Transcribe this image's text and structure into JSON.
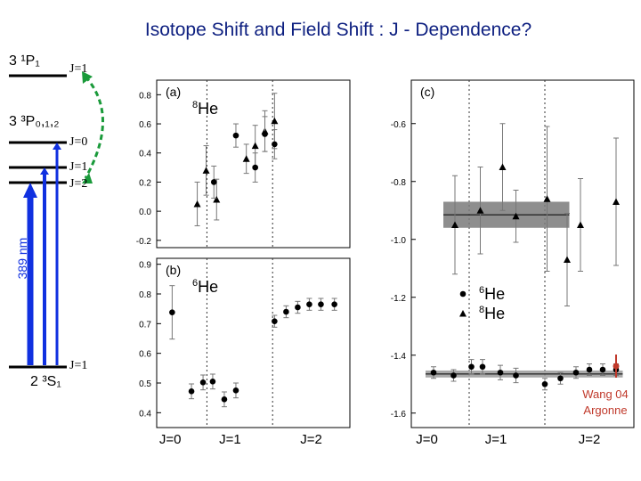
{
  "slide": {
    "title": "Isotope Shift and Field Shift : J - Dependence?",
    "credit_line1": "Wang 04",
    "credit_line2": "Argonne",
    "accent_color": "#0d1f80"
  },
  "energy_diagram": {
    "upper_singlet": "3 ¹P₁",
    "upper_singlet_J": "J=1",
    "triplet": "3 ³P₀,₁,₂",
    "triplet_J": [
      "J=0",
      "J=1",
      "J=2"
    ],
    "ground": "2 ³S₁",
    "ground_J": "J=1",
    "wavelength_label": "389 nm",
    "arrow_color": "#1030e0",
    "curved_arrow_color": "#1a9a3a"
  },
  "chart_data": [
    {
      "id": "a",
      "type": "scatter",
      "panel_label": "(a)",
      "isotope": "8He",
      "categories": [
        "J=0",
        "J=1",
        "J=2"
      ],
      "ylim": [
        -0.25,
        0.9
      ],
      "yticks": [
        -0.2,
        0.0,
        0.2,
        0.4,
        0.6,
        0.8
      ],
      "series": [
        {
          "marker": "triangle",
          "points": [
            {
              "x": 1.05,
              "y": 0.05,
              "err": 0.15
            },
            {
              "x": 1.28,
              "y": 0.28,
              "err": 0.17
            },
            {
              "x": 1.55,
              "y": 0.08,
              "err": 0.14
            },
            {
              "x": 2.32,
              "y": 0.36,
              "err": 0.1
            },
            {
              "x": 2.55,
              "y": 0.45,
              "err": 0.14
            },
            {
              "x": 2.8,
              "y": 0.55,
              "err": 0.14
            },
            {
              "x": 3.05,
              "y": 0.62,
              "err": 0.19
            }
          ]
        },
        {
          "marker": "dot",
          "points": [
            {
              "x": 1.48,
              "y": 0.2,
              "err": 0.11
            },
            {
              "x": 2.05,
              "y": 0.52,
              "err": 0.08
            },
            {
              "x": 2.55,
              "y": 0.3,
              "err": 0.1
            },
            {
              "x": 2.8,
              "y": 0.53,
              "err": 0.12
            },
            {
              "x": 3.05,
              "y": 0.46,
              "err": 0.1
            }
          ]
        }
      ]
    },
    {
      "id": "b",
      "type": "scatter",
      "panel_label": "(b)",
      "isotope": "6He",
      "categories": [
        "J=0",
        "J=1",
        "J=2"
      ],
      "ylim": [
        0.35,
        0.92
      ],
      "yticks": [
        0.4,
        0.5,
        0.6,
        0.7,
        0.8,
        0.9
      ],
      "series": [
        {
          "marker": "dot",
          "points": [
            {
              "x": 0.4,
              "y": 0.738,
              "err": 0.09
            },
            {
              "x": 0.9,
              "y": 0.472,
              "err": 0.025
            },
            {
              "x": 1.2,
              "y": 0.502,
              "err": 0.025
            },
            {
              "x": 1.45,
              "y": 0.505,
              "err": 0.025
            },
            {
              "x": 1.75,
              "y": 0.445,
              "err": 0.025
            },
            {
              "x": 2.05,
              "y": 0.475,
              "err": 0.025
            },
            {
              "x": 3.05,
              "y": 0.708,
              "err": 0.02
            },
            {
              "x": 3.35,
              "y": 0.74,
              "err": 0.02
            },
            {
              "x": 3.65,
              "y": 0.755,
              "err": 0.02
            },
            {
              "x": 3.95,
              "y": 0.765,
              "err": 0.02
            },
            {
              "x": 4.25,
              "y": 0.765,
              "err": 0.02
            },
            {
              "x": 4.6,
              "y": 0.765,
              "err": 0.02
            }
          ]
        }
      ]
    },
    {
      "id": "c",
      "type": "scatter",
      "panel_label": "(c)",
      "categories": [
        "J=0",
        "J=1",
        "J=2"
      ],
      "ylim": [
        -1.65,
        -0.45
      ],
      "yticks": [
        -0.6,
        -0.8,
        -1.0,
        -1.2,
        -1.4,
        -1.6
      ],
      "legend": [
        {
          "label": "6He",
          "marker": "dot"
        },
        {
          "label": "8He",
          "marker": "triangle"
        }
      ],
      "bands": [
        {
          "center": -0.915,
          "half_width": 0.045,
          "color": "#7a7a7a",
          "xrange": [
            0.72,
            3.55
          ]
        },
        {
          "center": -1.465,
          "half_width": 0.012,
          "color": "#9a9a9a",
          "xrange": [
            0.32,
            4.75
          ]
        }
      ],
      "series": [
        {
          "marker": "triangle",
          "points": [
            {
              "x": 0.98,
              "y": -0.95,
              "err": 0.17
            },
            {
              "x": 1.55,
              "y": -0.9,
              "err": 0.15
            },
            {
              "x": 2.05,
              "y": -0.75,
              "err": 0.15
            },
            {
              "x": 2.35,
              "y": -0.92,
              "err": 0.09
            },
            {
              "x": 3.05,
              "y": -0.86,
              "err": 0.25
            },
            {
              "x": 3.5,
              "y": -1.07,
              "err": 0.16
            },
            {
              "x": 3.8,
              "y": -0.95,
              "err": 0.16
            },
            {
              "x": 4.6,
              "y": -0.87,
              "err": 0.22
            }
          ]
        },
        {
          "marker": "dot",
          "points": [
            {
              "x": 0.5,
              "y": -1.46,
              "err": 0.02
            },
            {
              "x": 0.95,
              "y": -1.47,
              "err": 0.02
            },
            {
              "x": 1.35,
              "y": -1.44,
              "err": 0.025
            },
            {
              "x": 1.6,
              "y": -1.44,
              "err": 0.025
            },
            {
              "x": 2.0,
              "y": -1.46,
              "err": 0.025
            },
            {
              "x": 2.35,
              "y": -1.47,
              "err": 0.025
            },
            {
              "x": 3.0,
              "y": -1.5,
              "err": 0.02
            },
            {
              "x": 3.35,
              "y": -1.48,
              "err": 0.02
            },
            {
              "x": 3.7,
              "y": -1.46,
              "err": 0.02
            },
            {
              "x": 4.0,
              "y": -1.45,
              "err": 0.02
            },
            {
              "x": 4.3,
              "y": -1.45,
              "err": 0.02
            },
            {
              "x": 4.6,
              "y": -1.45,
              "err": 0.02
            }
          ]
        }
      ]
    }
  ]
}
